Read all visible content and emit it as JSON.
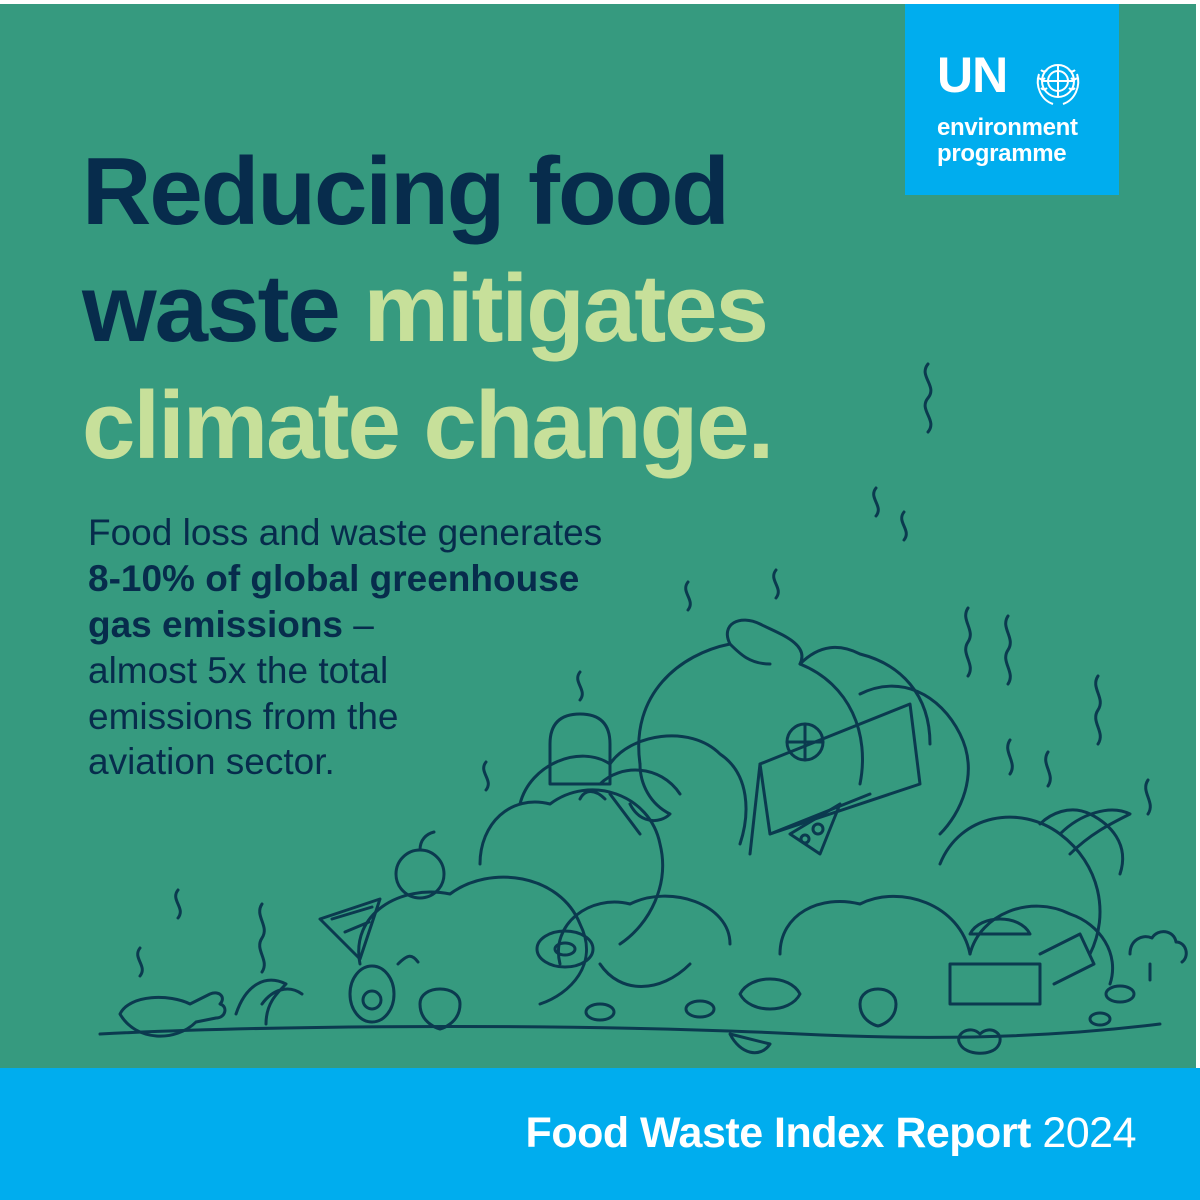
{
  "logo": {
    "org_short": "UN",
    "line1": "environment",
    "line2": "programme",
    "emblem_icon": "un-emblem-icon",
    "background": "#00adee"
  },
  "headline": {
    "line1": "Reducing food",
    "line2_dark": "waste",
    "line2_accent": "mitigates",
    "line3_accent": "climate change."
  },
  "body": {
    "intro": "Food loss and waste generates",
    "bold_line1": "8-10% of global greenhouse",
    "bold_line2": "gas emissions",
    "dash": " –",
    "rest_line1": "almost 5x the total",
    "rest_line2": "emissions from the",
    "rest_line3": "aviation sector."
  },
  "illustration": {
    "icon": "food-waste-pile-icon"
  },
  "footer": {
    "title": "Food Waste Index Report",
    "year": "2024"
  },
  "colors": {
    "panel": "#369a7f",
    "dark_text": "#072c4c",
    "accent_text": "#c7e09a",
    "brand_blue": "#00adee"
  }
}
